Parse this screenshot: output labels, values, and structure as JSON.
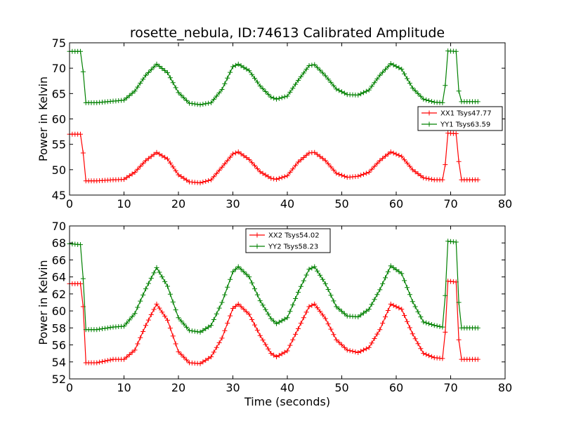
{
  "chart_data": [
    {
      "type": "line",
      "title": "rosette_nebula, ID:74613 Calibrated Amplitude",
      "xlabel": "",
      "ylabel": "Power in Kelvin",
      "xlim": [
        0,
        80
      ],
      "ylim": [
        45,
        75
      ],
      "x_ticks": [
        0,
        10,
        20,
        30,
        40,
        50,
        60,
        70,
        80
      ],
      "y_ticks": [
        45,
        50,
        55,
        60,
        65,
        70,
        75
      ],
      "grid": false,
      "legend_position": "right",
      "series": [
        {
          "name": "XX1 Tsys47.77",
          "color": "#ff0000",
          "x": [
            0,
            2,
            2.5,
            3,
            5,
            8,
            10,
            12,
            14,
            16,
            18,
            20,
            22,
            24,
            26,
            28,
            30,
            31,
            33,
            35,
            37,
            38,
            40,
            42,
            44,
            45,
            47,
            49,
            51,
            53,
            55,
            57,
            59,
            61,
            63,
            65,
            67,
            68.5,
            69,
            69.5,
            71,
            71.5,
            72,
            75
          ],
          "y": [
            57,
            57,
            53.3,
            47.8,
            47.8,
            48,
            48.1,
            49.5,
            51.8,
            53.4,
            52.1,
            49,
            47.6,
            47.4,
            48,
            50.5,
            53.1,
            53.5,
            52,
            49.6,
            48.3,
            48.1,
            48.8,
            51.5,
            53.3,
            53.4,
            51.8,
            49.3,
            48.5,
            48.7,
            49.5,
            51.8,
            53.5,
            52.6,
            50,
            48.4,
            48,
            48,
            51,
            57.2,
            57.1,
            51.6,
            48,
            48
          ]
        },
        {
          "name": "YY1 Tsys63.59",
          "color": "#008000",
          "x": [
            0,
            2,
            2.5,
            3,
            5,
            8,
            10,
            12,
            14,
            16,
            18,
            20,
            22,
            24,
            26,
            28,
            30,
            31,
            33,
            35,
            37,
            38,
            40,
            42,
            44,
            45,
            47,
            49,
            51,
            53,
            55,
            57,
            59,
            61,
            63,
            65,
            67,
            68.5,
            69,
            69.5,
            71,
            71.5,
            72,
            75
          ],
          "y": [
            73.3,
            73.3,
            69.3,
            63.2,
            63.2,
            63.5,
            63.7,
            65.5,
            68.6,
            70.8,
            69.1,
            65.2,
            63.1,
            62.8,
            63.2,
            65.8,
            70.3,
            70.8,
            69.5,
            66.5,
            64.3,
            63.9,
            64.5,
            67.6,
            70.5,
            70.7,
            68.5,
            65.9,
            64.8,
            64.7,
            65.7,
            68.6,
            70.9,
            69.8,
            66.1,
            63.9,
            63.3,
            63.2,
            66.6,
            73.4,
            73.3,
            65.5,
            63.4,
            63.4
          ]
        }
      ]
    },
    {
      "type": "line",
      "title": "",
      "xlabel": "Time (seconds)",
      "ylabel": "Power in Kelvin",
      "xlim": [
        0,
        80
      ],
      "ylim": [
        52,
        70
      ],
      "x_ticks": [
        0,
        10,
        20,
        30,
        40,
        50,
        60,
        70,
        80
      ],
      "y_ticks": [
        52,
        54,
        56,
        58,
        60,
        62,
        64,
        66,
        68,
        70
      ],
      "grid": false,
      "legend_position": "top-center",
      "series": [
        {
          "name": "XX2 Tsys54.02",
          "color": "#ff0000",
          "x": [
            0,
            2,
            2.5,
            3,
            5,
            8,
            10,
            12,
            14,
            16,
            18,
            20,
            22,
            24,
            26,
            28,
            30,
            31,
            33,
            35,
            37,
            38,
            40,
            42,
            44,
            45,
            47,
            49,
            51,
            53,
            55,
            57,
            59,
            61,
            63,
            65,
            67,
            68.5,
            69,
            69.5,
            71,
            71.5,
            72,
            75
          ],
          "y": [
            63.2,
            63.2,
            60.5,
            53.9,
            53.9,
            54.3,
            54.3,
            55.4,
            58.3,
            60.8,
            58.9,
            55.2,
            53.9,
            53.8,
            54.6,
            56.8,
            60.3,
            60.8,
            59.6,
            57.1,
            55,
            54.6,
            55.3,
            57.9,
            60.5,
            60.8,
            59.1,
            56.6,
            55.4,
            55.1,
            55.7,
            57.8,
            60.8,
            60.2,
            57.3,
            55,
            54.5,
            54.4,
            57.5,
            63.5,
            63.4,
            56.6,
            54.3,
            54.3
          ]
        },
        {
          "name": "YY2 Tsys58.23",
          "color": "#008000",
          "x": [
            0,
            2,
            2.5,
            3,
            5,
            8,
            10,
            12,
            14,
            16,
            18,
            20,
            22,
            24,
            26,
            28,
            30,
            31,
            33,
            35,
            37,
            38,
            40,
            42,
            44,
            45,
            47,
            49,
            51,
            53,
            55,
            57,
            59,
            61,
            63,
            65,
            67,
            68.5,
            69,
            69.5,
            71,
            71.5,
            72,
            75
          ],
          "y": [
            67.9,
            67.8,
            63.8,
            57.8,
            57.8,
            58.1,
            58.2,
            59.7,
            62.6,
            65.1,
            62.9,
            59.2,
            57.7,
            57.5,
            58.3,
            61,
            64.6,
            65.2,
            64,
            61.2,
            59.1,
            58.5,
            59.2,
            62.2,
            64.9,
            65.2,
            63.2,
            60.5,
            59.4,
            59.3,
            60.2,
            62.5,
            65.3,
            64.4,
            61.1,
            58.7,
            58.3,
            58.1,
            61.8,
            68.2,
            68.1,
            61,
            58,
            58
          ]
        }
      ]
    }
  ]
}
